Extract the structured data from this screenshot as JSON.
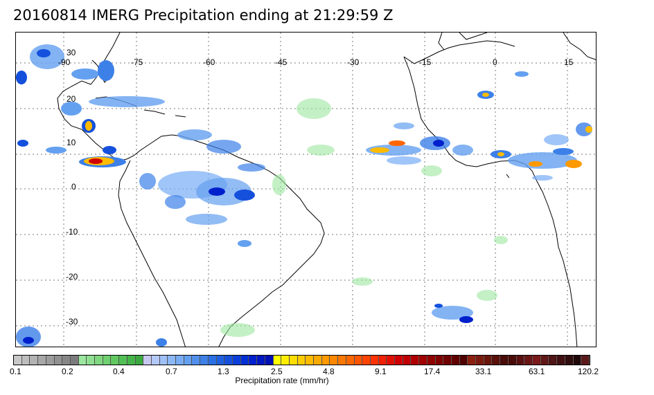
{
  "title": "20160814 IMERG Precipitation ending at 21:29:59 Z",
  "map": {
    "longitude_labels": [
      "-90",
      "-75",
      "-60",
      "-45",
      "-30",
      "-15",
      "0",
      "15"
    ],
    "latitude_labels": [
      "30",
      "20",
      "10",
      "0",
      "-10",
      "-20",
      "-30"
    ],
    "grid": true,
    "colors": {
      "land_outline": "#000000",
      "grid": "#555555"
    }
  },
  "colorbar": {
    "title": "Precipitation rate (mm/hr)",
    "tick_labels": [
      "0.1",
      "0.2",
      "0.4",
      "0.7",
      "1.3",
      "2.5",
      "4.8",
      "9.1",
      "17.4",
      "33.1",
      "63.1",
      "120.2"
    ],
    "colors": [
      "#c8c8c8",
      "#bdbdbd",
      "#b2b2b2",
      "#a7a7a7",
      "#9c9c9c",
      "#919191",
      "#868686",
      "#7b7b7b",
      "#9ce6a0",
      "#8fe090",
      "#7fd880",
      "#6fd070",
      "#60c860",
      "#50bf55",
      "#45b54a",
      "#3aaa40",
      "#c8c8f0",
      "#b4c8f8",
      "#a0c0f8",
      "#8cb8f8",
      "#78acf5",
      "#64a0f0",
      "#5090ec",
      "#3c80e8",
      "#2870e4",
      "#1e60e0",
      "#1450dc",
      "#0a40d8",
      "#0030d4",
      "#0020cc",
      "#0018c0",
      "#0010b4",
      "#ffff00",
      "#ffee00",
      "#ffdd00",
      "#ffcc00",
      "#ffbb00",
      "#ffaa00",
      "#ff9900",
      "#ff8800",
      "#ff7700",
      "#ff6600",
      "#ff5500",
      "#ff4400",
      "#ff3300",
      "#f02000",
      "#e01000",
      "#d00000",
      "#c00000",
      "#b00000",
      "#a00000",
      "#900000",
      "#800000",
      "#700000",
      "#600000",
      "#500000",
      "#8b2010",
      "#7a1a0e",
      "#6a150c",
      "#5a100a",
      "#4a0c08",
      "#4a0c08",
      "#5a1010",
      "#6a1515",
      "#7a1a1a",
      "#601818",
      "#501515",
      "#401010",
      "#300c0c",
      "#200808",
      "#5a1a1a"
    ]
  }
}
